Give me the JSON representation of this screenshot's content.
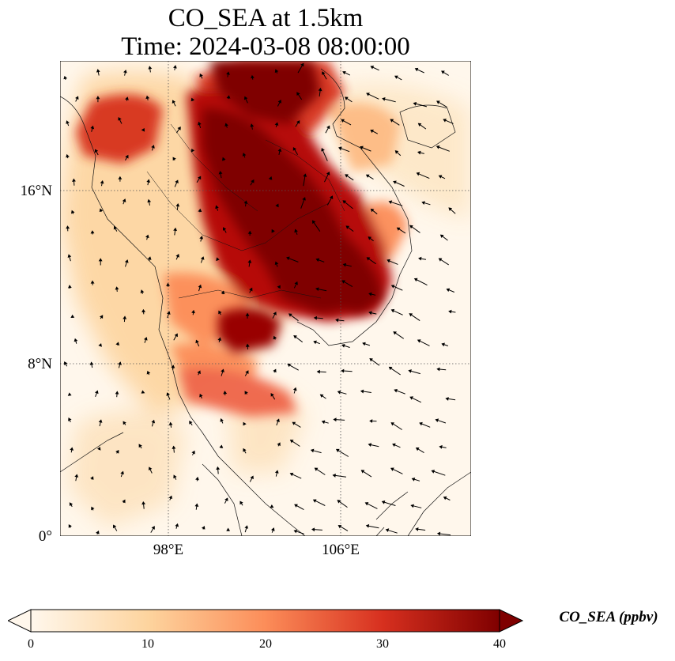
{
  "title": {
    "line1": "CO_SEA at 1.5km",
    "line2": "Time: 2024-03-08 08:00:00"
  },
  "map": {
    "variable": "CO_SEA",
    "level": "1.5km",
    "colormap": "OrRd",
    "lat_labels": [
      "16°N",
      "8°N",
      "0°"
    ],
    "lon_labels": [
      "98°E",
      "106°E"
    ],
    "gridlines": "dotted",
    "wind_vectors": true,
    "coastlines": true,
    "borders": true
  },
  "colorbar": {
    "label": "CO_SEA (ppbv)",
    "ticks": [
      "0",
      "10",
      "20",
      "30",
      "40"
    ],
    "min": 0,
    "max": 40,
    "extend": "both",
    "colors": [
      "#fff7ec",
      "#fdd49e",
      "#fc8d59",
      "#d7301f",
      "#7f0000"
    ]
  }
}
